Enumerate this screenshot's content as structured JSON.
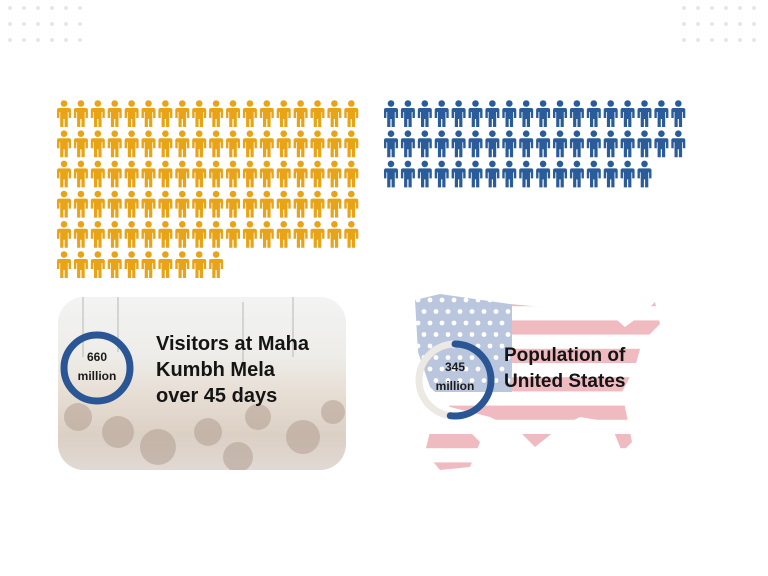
{
  "chart_data": {
    "type": "pictogram",
    "series": [
      {
        "name": "Visitors at Maha Kumbh Mela over 45 days",
        "value_millions": 660,
        "icons": 100,
        "icons_per_row": 18,
        "color": "#e8a317"
      },
      {
        "name": "Population of United States",
        "value_millions": 345,
        "icons": 52,
        "icons_per_row": 18,
        "color": "#2a5c99"
      }
    ]
  },
  "kumbh": {
    "value": "660",
    "unit": "million",
    "title_lines": [
      "Visitors at Maha",
      "Kumbh Mela",
      "over 45 days"
    ],
    "ring_fraction": 1.0
  },
  "usa": {
    "value": "345",
    "unit": "million",
    "title_lines": [
      "Population of",
      "United States"
    ],
    "ring_fraction": 0.52
  },
  "colors": {
    "ring": "#2a5696",
    "track": "#ece9e4",
    "flag_red": "#e9a8ae",
    "flag_blue": "#b7c2da"
  }
}
